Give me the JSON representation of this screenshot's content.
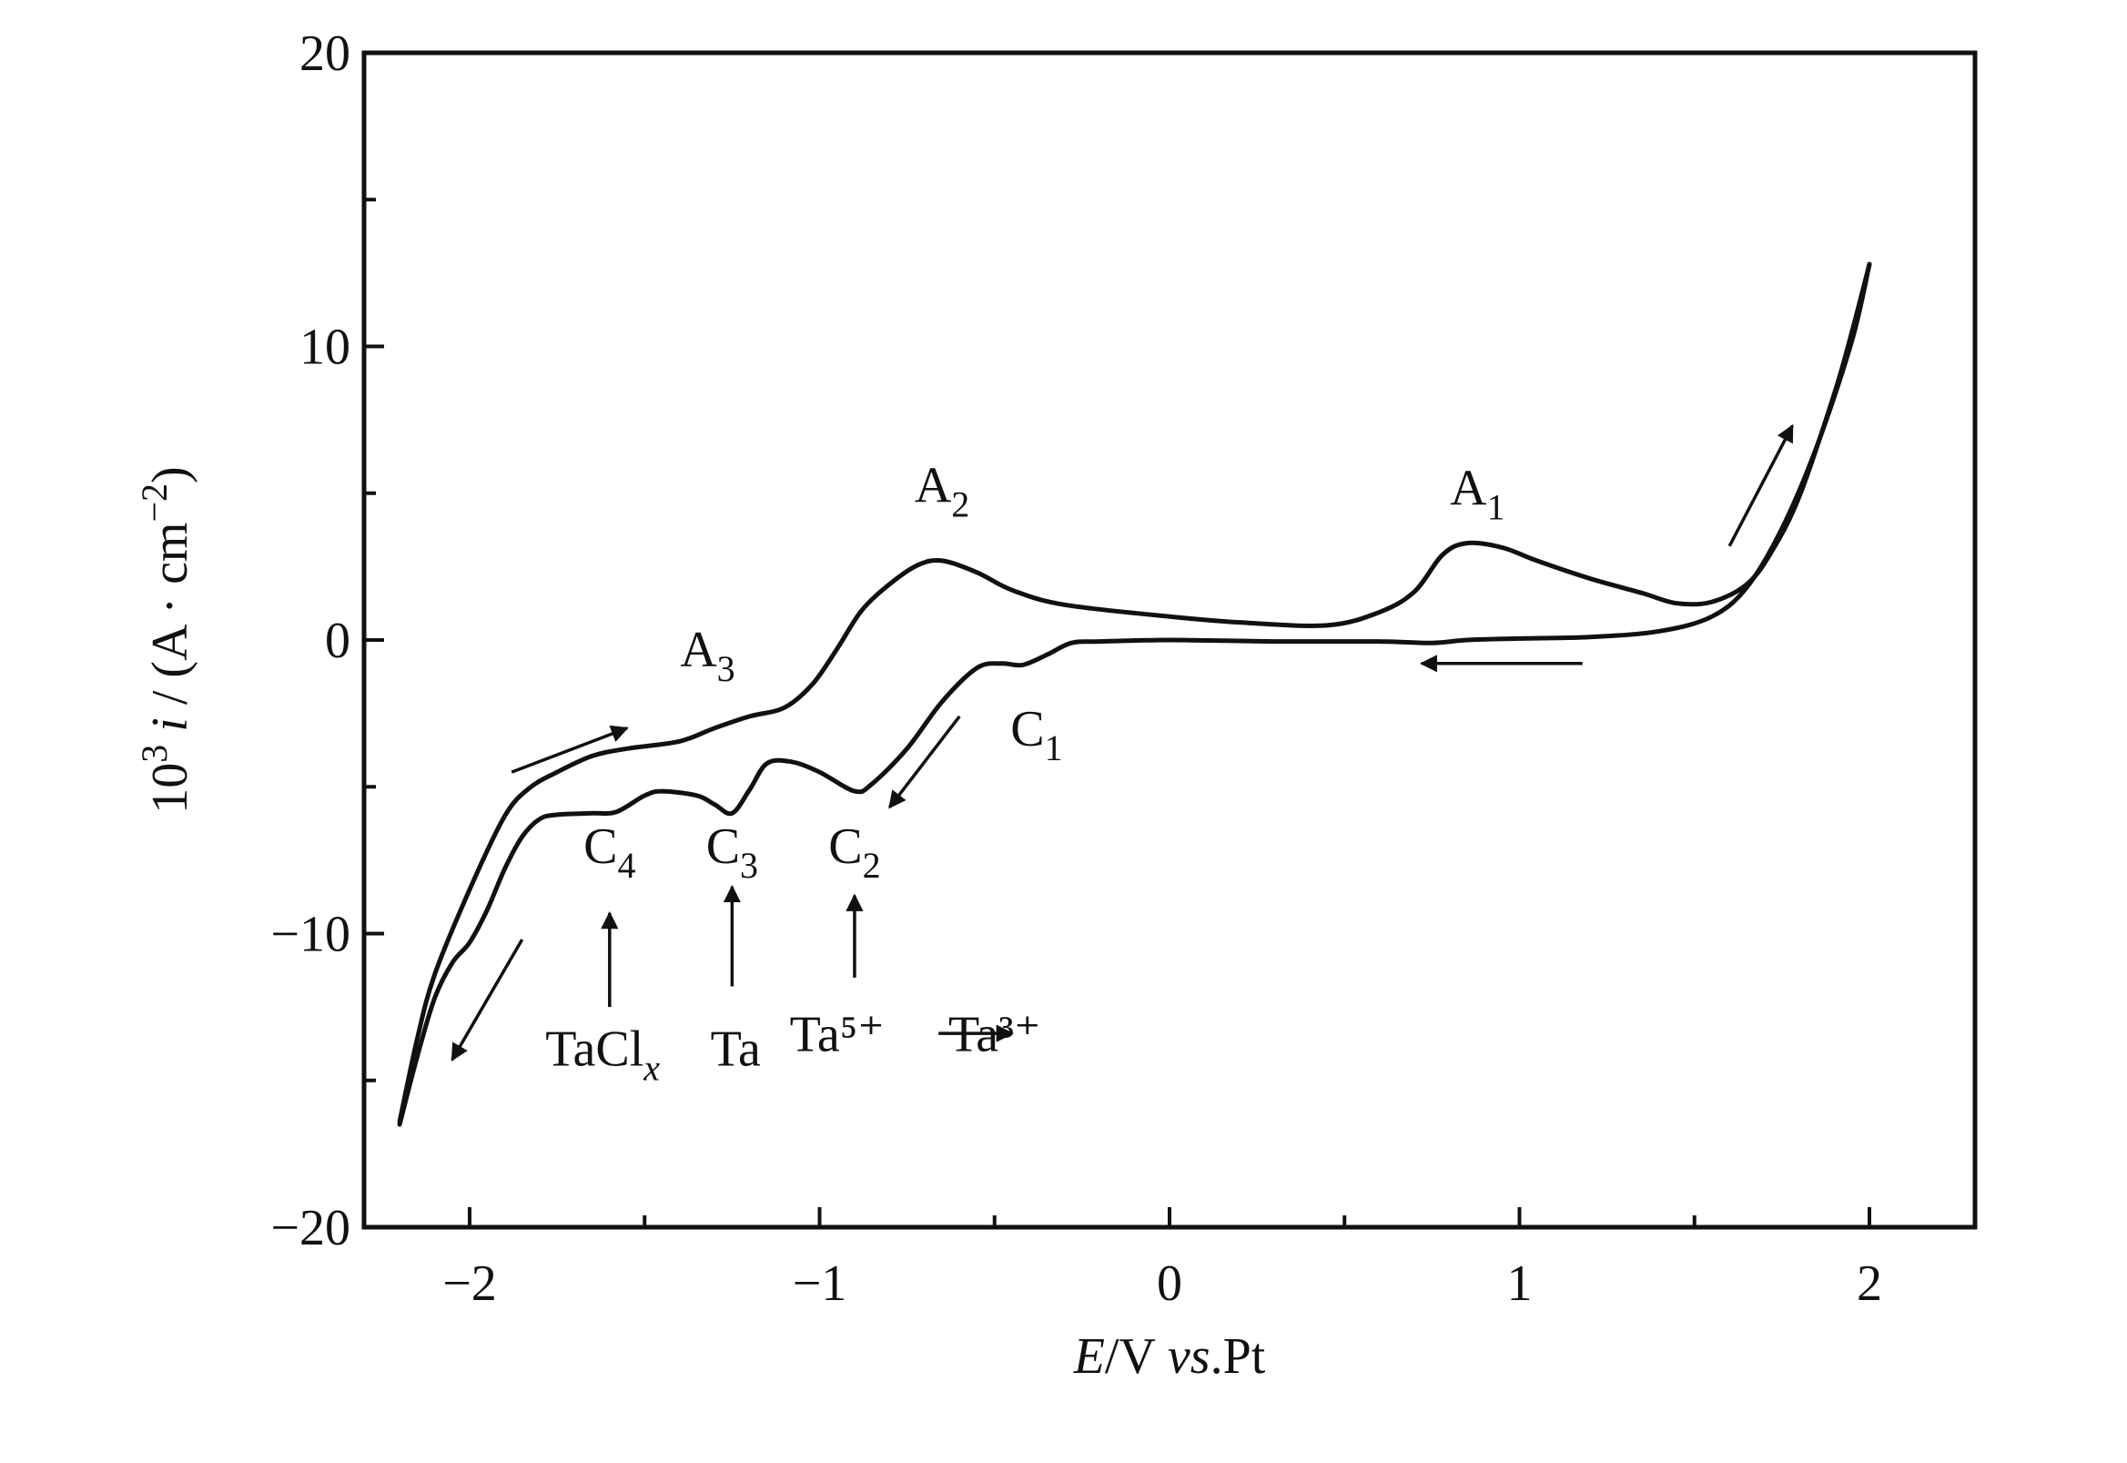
{
  "chart_data": {
    "type": "line",
    "xlim": [
      -2.3,
      2.3
    ],
    "ylim": [
      -20,
      20
    ],
    "x_ticks": [
      {
        "value": -2,
        "label": "−2"
      },
      {
        "value": -1,
        "label": "−1"
      },
      {
        "value": 0,
        "label": "0"
      },
      {
        "value": 1,
        "label": "1"
      },
      {
        "value": 2,
        "label": "2"
      }
    ],
    "x_minor_ticks": [
      -1.5,
      -0.5,
      0.5,
      1.5
    ],
    "y_ticks": [
      {
        "value": 20,
        "label": "20"
      },
      {
        "value": 10,
        "label": "10"
      },
      {
        "value": 0,
        "label": "0"
      },
      {
        "value": -10,
        "label": "−10"
      },
      {
        "value": -20,
        "label": "−20"
      }
    ],
    "y_minor_ticks": [
      15,
      5,
      -5,
      -15
    ],
    "xlabel": {
      "e": "E",
      "rest": "/V ",
      "vs": "vs",
      "pt": ".Pt"
    },
    "ylabel": {
      "p10": "10",
      "p3": "3",
      "i": " i",
      "rest": " / (A · cm",
      "exp": "−2",
      "close": ")"
    },
    "grid": false,
    "legend": "none",
    "series": [
      {
        "values": [
          [
            -2.2,
            -16.5
          ],
          [
            -2.15,
            -14.2
          ],
          [
            -2.1,
            -12.2
          ],
          [
            -2.05,
            -11.0
          ],
          [
            -2.0,
            -10.3
          ],
          [
            -1.95,
            -9.2
          ],
          [
            -1.9,
            -7.8
          ],
          [
            -1.85,
            -6.7
          ],
          [
            -1.8,
            -6.1
          ],
          [
            -1.75,
            -5.95
          ],
          [
            -1.65,
            -5.9
          ],
          [
            -1.58,
            -5.85
          ],
          [
            -1.5,
            -5.3
          ],
          [
            -1.45,
            -5.15
          ],
          [
            -1.35,
            -5.3
          ],
          [
            -1.3,
            -5.6
          ],
          [
            -1.25,
            -5.9
          ],
          [
            -1.2,
            -5.1
          ],
          [
            -1.15,
            -4.2
          ],
          [
            -1.08,
            -4.15
          ],
          [
            -1.0,
            -4.5
          ],
          [
            -0.9,
            -5.15
          ],
          [
            -0.85,
            -4.9
          ],
          [
            -0.75,
            -3.7
          ],
          [
            -0.65,
            -2.1
          ],
          [
            -0.55,
            -0.95
          ],
          [
            -0.48,
            -0.8
          ],
          [
            -0.42,
            -0.85
          ],
          [
            -0.35,
            -0.5
          ],
          [
            -0.28,
            -0.1
          ],
          [
            -0.2,
            -0.05
          ],
          [
            0.0,
            0.0
          ],
          [
            0.3,
            -0.05
          ],
          [
            0.6,
            -0.05
          ],
          [
            0.75,
            -0.1
          ],
          [
            0.85,
            0.0
          ],
          [
            1.0,
            0.05
          ],
          [
            1.2,
            0.1
          ],
          [
            1.4,
            0.3
          ],
          [
            1.55,
            0.8
          ],
          [
            1.65,
            1.8
          ],
          [
            1.75,
            3.8
          ],
          [
            1.85,
            6.6
          ],
          [
            1.95,
            10.2
          ],
          [
            2.0,
            12.8
          ]
        ]
      },
      {
        "values": [
          [
            2.0,
            12.8
          ],
          [
            1.95,
            10.5
          ],
          [
            1.9,
            8.4
          ],
          [
            1.8,
            4.9
          ],
          [
            1.72,
            3.0
          ],
          [
            1.65,
            1.9
          ],
          [
            1.55,
            1.3
          ],
          [
            1.45,
            1.25
          ],
          [
            1.35,
            1.6
          ],
          [
            1.2,
            2.1
          ],
          [
            1.05,
            2.7
          ],
          [
            0.95,
            3.15
          ],
          [
            0.85,
            3.3
          ],
          [
            0.78,
            2.9
          ],
          [
            0.7,
            1.65
          ],
          [
            0.6,
            0.95
          ],
          [
            0.45,
            0.5
          ],
          [
            0.2,
            0.6
          ],
          [
            0.0,
            0.8
          ],
          [
            -0.3,
            1.2
          ],
          [
            -0.45,
            1.7
          ],
          [
            -0.55,
            2.3
          ],
          [
            -0.65,
            2.7
          ],
          [
            -0.72,
            2.55
          ],
          [
            -0.8,
            1.9
          ],
          [
            -0.88,
            1.0
          ],
          [
            -0.95,
            -0.3
          ],
          [
            -1.02,
            -1.5
          ],
          [
            -1.1,
            -2.3
          ],
          [
            -1.2,
            -2.6
          ],
          [
            -1.3,
            -3.0
          ],
          [
            -1.4,
            -3.45
          ],
          [
            -1.55,
            -3.7
          ],
          [
            -1.65,
            -3.95
          ],
          [
            -1.75,
            -4.5
          ],
          [
            -1.83,
            -5.05
          ],
          [
            -1.9,
            -6.0
          ],
          [
            -2.0,
            -8.5
          ],
          [
            -2.1,
            -11.4
          ],
          [
            -2.15,
            -13.6
          ],
          [
            -2.2,
            -16.4
          ]
        ]
      }
    ],
    "annotations": [
      {
        "base": "A",
        "sub": "1",
        "x": 0.88,
        "y": 4.6
      },
      {
        "base": "A",
        "sub": "2",
        "x": -0.65,
        "y": 4.7
      },
      {
        "base": "A",
        "sub": "3",
        "x": -1.32,
        "y": -0.9
      },
      {
        "base": "C",
        "sub": "1",
        "x": -0.38,
        "y": -3.6
      },
      {
        "base": "C",
        "sub": "2",
        "x": -0.9,
        "y": -7.6
      },
      {
        "base": "C",
        "sub": "3",
        "x": -1.25,
        "y": -7.6
      },
      {
        "base": "C",
        "sub": "4",
        "x": -1.6,
        "y": -7.6
      }
    ],
    "species_labels": [
      {
        "text": "TaCl",
        "sub": "x",
        "x": -1.62,
        "y": -14.5
      },
      {
        "text": "Ta",
        "x": -1.24,
        "y": -14.5
      },
      {
        "text": "Ta⁵⁺",
        "x": -0.95,
        "y": -14.0
      },
      {
        "text": "Ta³⁺",
        "x": -0.5,
        "y": -14.0
      }
    ],
    "arrows": [
      {
        "from": [
          -1.88,
          -4.5
        ],
        "to": [
          -1.55,
          -3.0
        ]
      },
      {
        "from": [
          1.6,
          3.2
        ],
        "to": [
          1.78,
          7.3
        ]
      },
      {
        "from": [
          1.18,
          -0.8
        ],
        "to": [
          0.72,
          -0.8
        ]
      },
      {
        "from": [
          -0.6,
          -2.6
        ],
        "to": [
          -0.8,
          -5.7
        ]
      },
      {
        "from": [
          -1.85,
          -10.2
        ],
        "to": [
          -2.05,
          -14.3
        ]
      },
      {
        "from": [
          -1.6,
          -12.5
        ],
        "to": [
          -1.6,
          -9.3
        ]
      },
      {
        "from": [
          -1.25,
          -11.8
        ],
        "to": [
          -1.25,
          -8.4
        ]
      },
      {
        "from": [
          -0.9,
          -11.5
        ],
        "to": [
          -0.9,
          -8.7
        ]
      },
      {
        "from": [
          -0.66,
          -13.4
        ],
        "to": [
          -0.45,
          -13.4
        ]
      }
    ]
  }
}
